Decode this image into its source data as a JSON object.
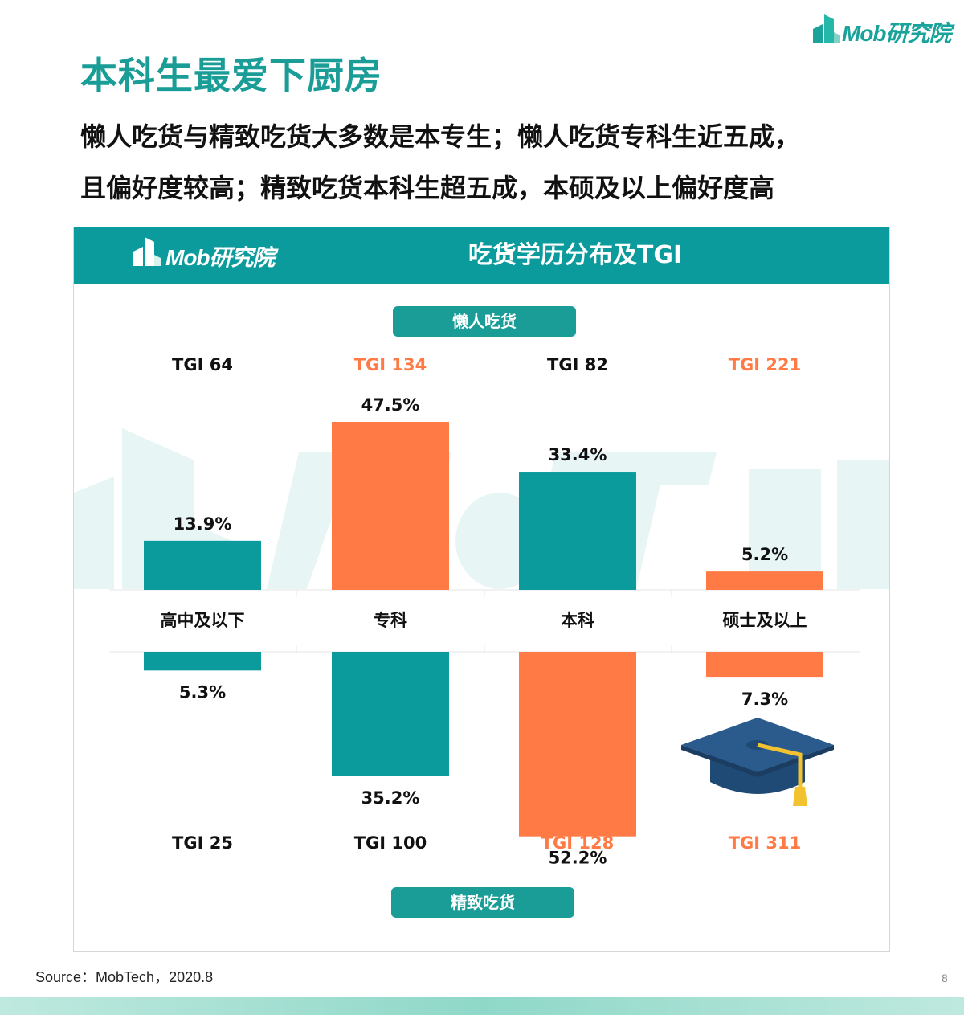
{
  "brand": {
    "logo_text": "Mob研究院"
  },
  "page": {
    "title": "本科生最爱下厨房",
    "subtitle_lines": [
      "懒人吃货与精致吃货大多数是本专生；懒人吃货专科生近五成，",
      "且偏好度较高；精致吃货本科生超五成，本硕及以上偏好度高"
    ],
    "source": "Source：MobTech，2020.8",
    "page_number": "8"
  },
  "colors": {
    "teal": "#0b9b9c",
    "orange": "#ff7a45",
    "title_teal": "#1a9c97"
  },
  "chart_data": {
    "type": "bar",
    "title": "吃货学历分布及TGI",
    "categories": [
      "高中及以下",
      "专科",
      "本科",
      "硕士及以上"
    ],
    "series": [
      {
        "name": "懒人吃货",
        "values": [
          13.9,
          47.5,
          33.4,
          5.2
        ],
        "value_labels": [
          "13.9%",
          "47.5%",
          "33.4%",
          "5.2%"
        ],
        "tgi": [
          "TGI 64",
          "TGI 134",
          "TGI 82",
          "TGI 221"
        ],
        "highlight": [
          false,
          true,
          false,
          true
        ]
      },
      {
        "name": "精致吃货",
        "values": [
          5.3,
          35.2,
          52.2,
          7.3
        ],
        "value_labels": [
          "5.3%",
          "35.2%",
          "52.2%",
          "7.3%"
        ],
        "tgi": [
          "TGI 25",
          "TGI 100",
          "TGI 128",
          "TGI 311"
        ],
        "highlight": [
          false,
          false,
          true,
          true
        ]
      }
    ],
    "layout": "mirrored: top series above category band, bottom series below"
  }
}
